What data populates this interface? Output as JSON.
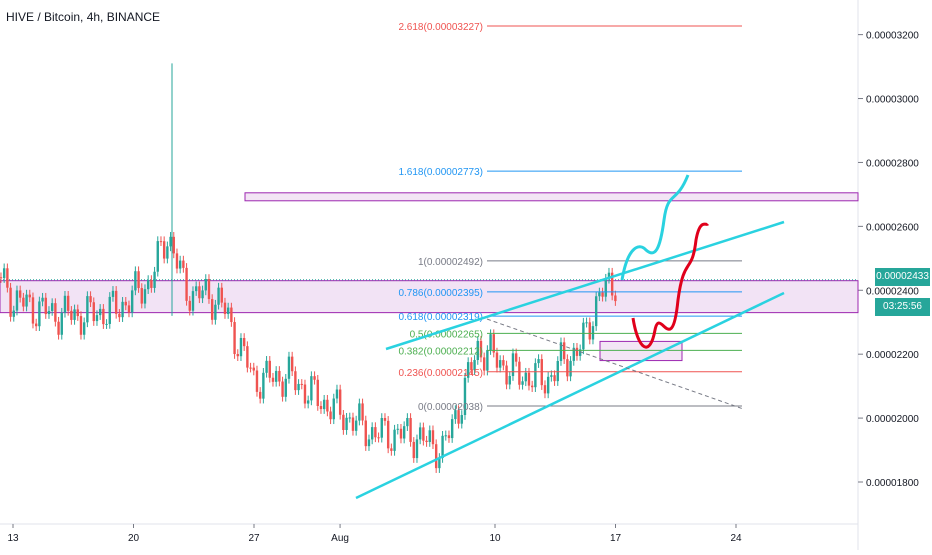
{
  "header": {
    "title": "HIVE / Bitcoin, 4h, BINANCE"
  },
  "badges": {
    "last_price": "0.00002433",
    "countdown": "03:25:56"
  },
  "chart_data": {
    "type": "candlestick",
    "title": "HIVE / Bitcoin, 4h, BINANCE",
    "xlabel": "",
    "ylabel": "",
    "x_ticks": [
      "13",
      "20",
      "27",
      "Aug",
      "10",
      "17",
      "24"
    ],
    "y_ticks": [
      "0.00001800",
      "0.00002000",
      "0.00002200",
      "0.00002400",
      "0.00002600",
      "0.00002800",
      "0.00003000",
      "0.00003200"
    ],
    "y_tick_values": [
      1.8e-05,
      2e-05,
      2.2e-05,
      2.4e-05,
      2.6e-05,
      2.8e-05,
      3e-05,
      3.2e-05
    ],
    "ylim": [
      1.705e-05,
      3.285e-05
    ],
    "grid": true,
    "colors": {
      "up": "#26a69a",
      "down": "#ef5350",
      "channel": "#2ad2e0",
      "zone": "#9c27b0",
      "projection_up": "#2ad2e0",
      "projection_down": "#e0001b"
    },
    "fibonacci": [
      {
        "label": "2.618(0.00003227)",
        "level": 2.618,
        "price": 3.227e-05,
        "color": "#ef5350"
      },
      {
        "label": "1.618(0.00002773)",
        "level": 1.618,
        "price": 2.773e-05,
        "color": "#2196f3"
      },
      {
        "label": "1(0.00002492)",
        "level": 1,
        "price": 2.492e-05,
        "color": "#787b86"
      },
      {
        "label": "0.786(0.00002395)",
        "level": 0.786,
        "price": 2.395e-05,
        "color": "#2196f3"
      },
      {
        "label": "0.618(0.00002319)",
        "level": 0.618,
        "price": 2.319e-05,
        "color": "#2196f3"
      },
      {
        "label": "0.5(0.00002265)",
        "level": 0.5,
        "price": 2.265e-05,
        "color": "#4caf50"
      },
      {
        "label": "0.382(0.00002212)",
        "level": 0.382,
        "price": 2.212e-05,
        "color": "#4caf50"
      },
      {
        "label": "0.236(0.00002145)",
        "level": 0.236,
        "price": 2.145e-05,
        "color": "#ef5350"
      },
      {
        "label": "0(0.00002038)",
        "level": 0,
        "price": 2.038e-05,
        "color": "#787b86"
      }
    ],
    "series": [
      {
        "name": "HIVE/BTC",
        "x_date": [
          "Jul 11",
          "Jul 13",
          "Jul 15",
          "Jul 17",
          "Jul 19",
          "Jul 21",
          "Jul 22",
          "Jul 23",
          "Jul 25",
          "Jul 27",
          "Jul 29",
          "Jul 31",
          "Aug 3",
          "Aug 5",
          "Aug 7",
          "Aug 8",
          "Aug 9",
          "Aug 10",
          "Aug 11",
          "Aug 13",
          "Aug 14",
          "Aug 15",
          "Aug 16",
          "Aug 17"
        ],
        "close": [
          2.55e-05,
          2.37e-05,
          2.33e-05,
          2.32e-05,
          2.34e-05,
          2.43e-05,
          2.58e-05,
          2.4e-05,
          2.37e-05,
          2.12e-05,
          2.13e-05,
          2.05e-05,
          1.95e-05,
          1.95e-05,
          1.9e-05,
          2.05e-05,
          2.22e-05,
          2.19e-05,
          2.14e-05,
          2.12e-05,
          2.18e-05,
          2.22e-05,
          2.38e-05,
          2.43e-05
        ]
      }
    ]
  }
}
